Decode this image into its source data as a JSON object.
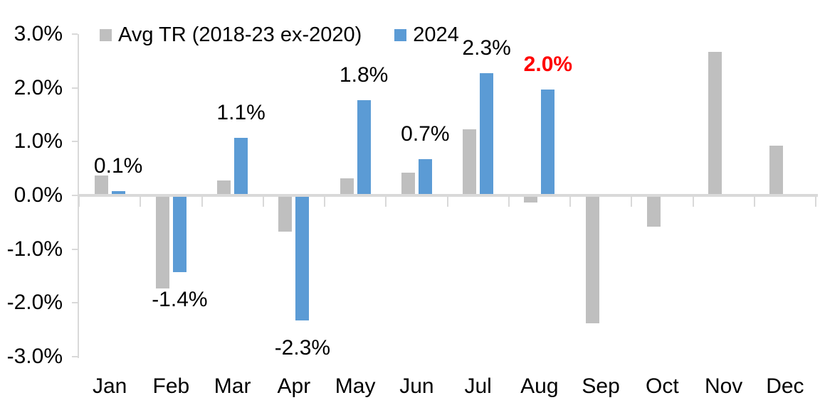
{
  "chart_data": {
    "type": "bar",
    "categories": [
      "Jan",
      "Feb",
      "Mar",
      "Apr",
      "May",
      "Jun",
      "Jul",
      "Aug",
      "Sep",
      "Oct",
      "Nov",
      "Dec"
    ],
    "series": [
      {
        "name": "Avg TR (2018-23 ex-2020)",
        "color": "#BFBFBF",
        "values": [
          0.4,
          -1.7,
          0.3,
          -0.65,
          0.35,
          0.45,
          1.25,
          -0.1,
          -2.35,
          -0.55,
          2.7,
          0.95
        ]
      },
      {
        "name": "2024",
        "color": "#5B9BD5",
        "values": [
          0.1,
          -1.4,
          1.1,
          -2.3,
          1.8,
          0.7,
          2.3,
          2.0,
          null,
          null,
          null,
          null
        ]
      }
    ],
    "data_labels": {
      "texts": [
        "0.1%",
        "-1.4%",
        "1.1%",
        "-2.3%",
        "1.8%",
        "0.7%",
        "2.3%",
        "2.0%",
        null,
        null,
        null,
        null
      ],
      "default_color": "#000000",
      "highlight_index": 7,
      "highlight_color": "#FF0000",
      "highlight_bold": true
    },
    "y_axis": {
      "tick_labels": [
        "3.0%",
        "2.0%",
        "1.0%",
        "0.0%",
        "-1.0%",
        "-2.0%",
        "-3.0%"
      ],
      "max": 3.0,
      "min": -3.0,
      "step": 1.0
    },
    "legend": [
      {
        "label": "Avg TR (2018-23 ex-2020)",
        "color": "#BFBFBF"
      },
      {
        "label": "2024",
        "color": "#5B9BD5"
      }
    ],
    "axis_color": "#D9D9D9",
    "grid": false,
    "legend_position": "top-left",
    "title": "",
    "xlabel": "",
    "ylabel": ""
  }
}
